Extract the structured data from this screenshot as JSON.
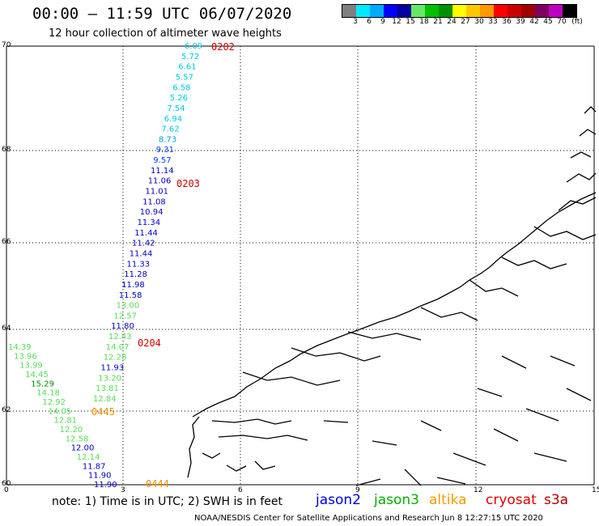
{
  "title": "00:00 – 11:59 UTC 06/07/2020",
  "subtitle": "12 hour collection of altimeter wave heights",
  "legend": {
    "colors": [
      "#7f7f7f",
      "#00e8ff",
      "#00aaff",
      "#0000ff",
      "#0000a0",
      "#66e866",
      "#00c000",
      "#009000",
      "#ffff00",
      "#ffc800",
      "#ff9900",
      "#ff0000",
      "#cc0000",
      "#a00000",
      "#800060",
      "#c000c0",
      "#000000"
    ],
    "labels": [
      "3",
      "6",
      "9",
      "12",
      "15",
      "18",
      "21",
      "24",
      "27",
      "30",
      "33",
      "36",
      "39",
      "42",
      "45",
      "70",
      "(ft)"
    ]
  },
  "axes": {
    "lat_labels": [
      "70",
      "68",
      "66",
      "64",
      "62",
      "60"
    ],
    "lon_labels": [
      "0",
      "3",
      "6",
      "9",
      "12",
      "15"
    ]
  },
  "time_labels": [
    {
      "text": "0202",
      "color": "#d00000"
    },
    {
      "text": "0203",
      "color": "#d00000"
    },
    {
      "text": "0204",
      "color": "#d00000"
    },
    {
      "text": "0445",
      "color": "#f08c00"
    },
    {
      "text": "0444",
      "color": "#f08c00"
    }
  ],
  "tracks": {
    "track_a": [
      {
        "v": "6.09",
        "c": "#00c8e0"
      },
      {
        "v": "5.72",
        "c": "#00c8e0"
      },
      {
        "v": "6.61",
        "c": "#00c8e0"
      },
      {
        "v": "5.57",
        "c": "#00c8e0"
      },
      {
        "v": "6.58",
        "c": "#00c8e0"
      },
      {
        "v": "5.26",
        "c": "#00c8e0"
      },
      {
        "v": "7.54",
        "c": "#00c8e0"
      },
      {
        "v": "6.94",
        "c": "#00c8e0"
      },
      {
        "v": "7.62",
        "c": "#00c8e0"
      },
      {
        "v": "8.73",
        "c": "#00a0e0"
      },
      {
        "v": "9.31",
        "c": "#0040ff"
      },
      {
        "v": "9.57",
        "c": "#0040ff"
      },
      {
        "v": "11.14",
        "c": "#0000c0"
      },
      {
        "v": "11.06",
        "c": "#0000c0"
      },
      {
        "v": "11.01",
        "c": "#0000c0"
      },
      {
        "v": "11.08",
        "c": "#0000c0"
      },
      {
        "v": "10.94",
        "c": "#0000c0"
      },
      {
        "v": "11.34",
        "c": "#0000c0"
      },
      {
        "v": "11.44",
        "c": "#0000c0"
      },
      {
        "v": "11.42",
        "c": "#0000c0"
      },
      {
        "v": "11.44",
        "c": "#0000c0"
      },
      {
        "v": "11.33",
        "c": "#0000c0"
      },
      {
        "v": "11.28",
        "c": "#0000c0"
      },
      {
        "v": "11.98",
        "c": "#0000c0"
      },
      {
        "v": "11.58",
        "c": "#0000c0"
      },
      {
        "v": "13.00",
        "c": "#55dd55"
      },
      {
        "v": "12.57",
        "c": "#55dd55"
      },
      {
        "v": "11.80",
        "c": "#0000c0"
      },
      {
        "v": "12.43",
        "c": "#55dd55"
      },
      {
        "v": "14.07",
        "c": "#55dd55"
      },
      {
        "v": "12.28",
        "c": "#55dd55"
      },
      {
        "v": "11.93",
        "c": "#0000c0"
      },
      {
        "v": "13.20",
        "c": "#55dd55"
      },
      {
        "v": "13.81",
        "c": "#55dd55"
      },
      {
        "v": "12.84",
        "c": "#55dd55"
      }
    ],
    "track_b": [
      {
        "v": "14.39",
        "c": "#55dd55"
      },
      {
        "v": "13.96",
        "c": "#55dd55"
      },
      {
        "v": "13.99",
        "c": "#55dd55"
      },
      {
        "v": "14.45",
        "c": "#55dd55"
      },
      {
        "v": "15.29",
        "c": "#009000"
      },
      {
        "v": "14.18",
        "c": "#55dd55"
      },
      {
        "v": "12.92",
        "c": "#55dd55"
      },
      {
        "v": "14.05",
        "c": "#55dd55"
      },
      {
        "v": "12.81",
        "c": "#55dd55"
      },
      {
        "v": "12.20",
        "c": "#55dd55"
      },
      {
        "v": "12.58",
        "c": "#55dd55"
      },
      {
        "v": "12.00",
        "c": "#0000c0"
      },
      {
        "v": "12.14",
        "c": "#55dd55"
      },
      {
        "v": "11.87",
        "c": "#0000c0"
      },
      {
        "v": "11.90",
        "c": "#0000c0"
      },
      {
        "v": "11.90",
        "c": "#0000c0"
      }
    ]
  },
  "note": "note:  1) Time is in UTC;  2) SWH is in feet",
  "satellites": [
    {
      "name": "jason2",
      "color": "#0000e0"
    },
    {
      "name": "jason3",
      "color": "#00b000"
    },
    {
      "name": "altika",
      "color": "#f0a000"
    },
    {
      "name": "cryosat",
      "color": "#e00000"
    },
    {
      "name": "s3a",
      "color": "#b00000"
    }
  ],
  "footer": "NOAA/NESDIS Center for Satellite Applications and Research    Jun  8 12:27:15 UTC 2020"
}
